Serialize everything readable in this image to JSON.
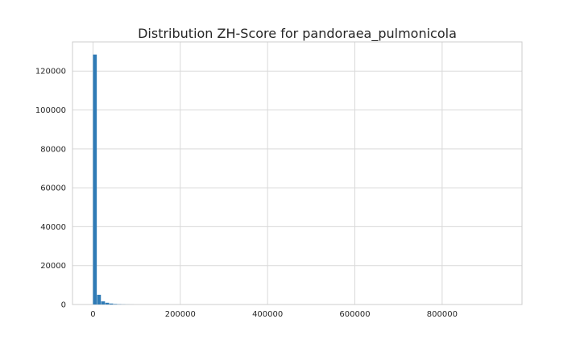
{
  "chart_data": {
    "type": "bar",
    "title": "Distribution ZH-Score for pandoraea_pulmonicola",
    "xlabel": "",
    "ylabel": "",
    "xlim": [
      -47000,
      983000
    ],
    "ylim": [
      0,
      135000
    ],
    "xticks": [
      0,
      200000,
      400000,
      600000,
      800000
    ],
    "xtick_labels": [
      "0",
      "200000",
      "400000",
      "600000",
      "800000"
    ],
    "yticks": [
      0,
      20000,
      40000,
      60000,
      80000,
      100000,
      120000
    ],
    "ytick_labels": [
      "0",
      "20000",
      "40000",
      "60000",
      "80000",
      "100000",
      "120000"
    ],
    "grid": true,
    "bar_color": "#2f7bb6",
    "bins": [
      {
        "x0": 0,
        "x1": 9400,
        "count": 128500
      },
      {
        "x0": 9400,
        "x1": 18800,
        "count": 5000
      },
      {
        "x0": 18800,
        "x1": 28200,
        "count": 1600
      },
      {
        "x0": 28200,
        "x1": 37600,
        "count": 900
      },
      {
        "x0": 37600,
        "x1": 47000,
        "count": 500
      },
      {
        "x0": 47000,
        "x1": 56400,
        "count": 250
      },
      {
        "x0": 56400,
        "x1": 65800,
        "count": 120
      },
      {
        "x0": 65800,
        "x1": 75200,
        "count": 60
      },
      {
        "x0": 75200,
        "x1": 84600,
        "count": 30
      },
      {
        "x0": 84600,
        "x1": 94000,
        "count": 15
      }
    ]
  }
}
